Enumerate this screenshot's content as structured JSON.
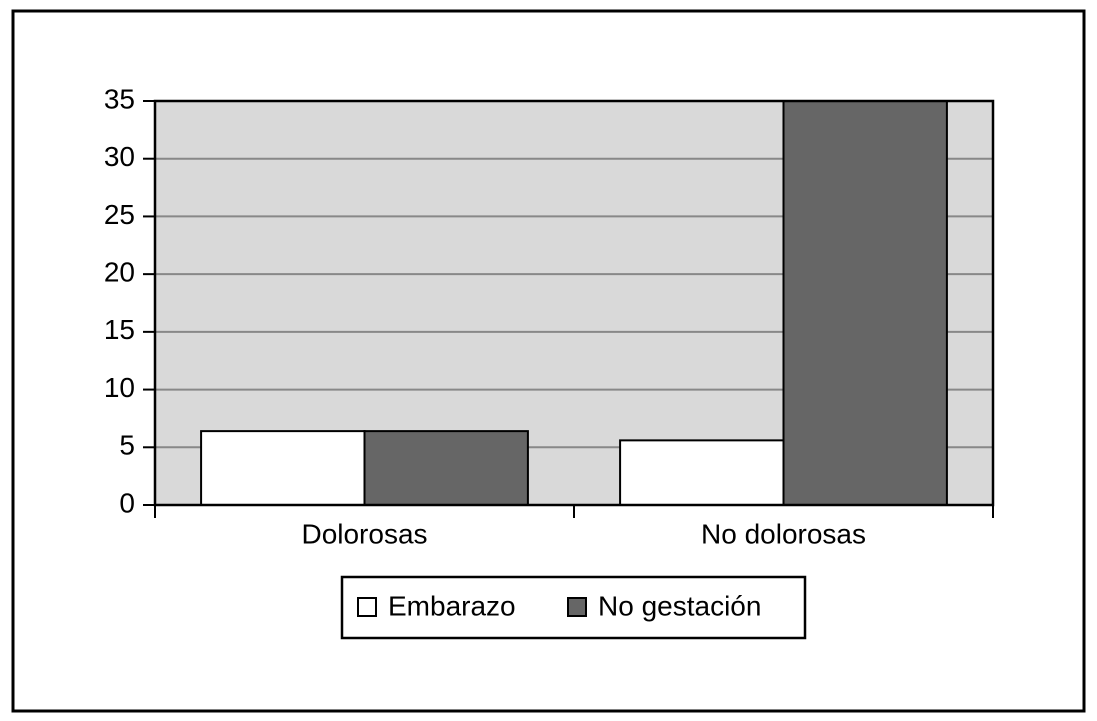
{
  "chart_data": {
    "type": "bar",
    "categories": [
      "Dolorosas",
      "No dolorosas"
    ],
    "series": [
      {
        "name": "Embarazo",
        "color": "#ffffff",
        "values": [
          6.4,
          5.6
        ]
      },
      {
        "name": "No gestación",
        "color": "#666666",
        "values": [
          6.4,
          35
        ]
      }
    ],
    "ylim": [
      0,
      35
    ],
    "yticks": [
      0,
      5,
      10,
      15,
      20,
      25,
      30,
      35
    ],
    "grid": true,
    "plot_background": "#d9d9d9",
    "legend": "bottom"
  }
}
